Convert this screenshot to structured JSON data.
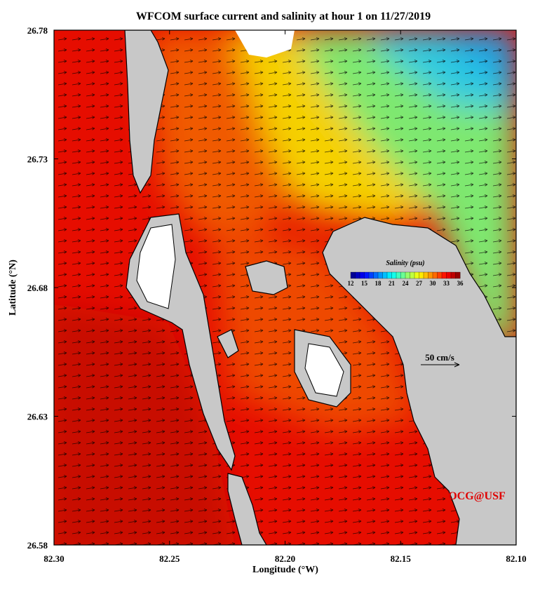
{
  "title": "WFCOM surface current and salinity at hour 1 on 11/27/2019",
  "x_axis": {
    "label": "Longitude (°W)",
    "ticks": [
      "82.30",
      "82.25",
      "82.20",
      "82.15",
      "82.10"
    ]
  },
  "y_axis": {
    "label": "Latitude (°N)",
    "ticks": [
      "26.78",
      "26.73",
      "26.68",
      "26.63",
      "26.58"
    ]
  },
  "colorbar": {
    "title": "Salinity (psu)",
    "ticks": [
      12,
      15,
      18,
      21,
      24,
      27,
      30,
      33,
      36
    ]
  },
  "scale_arrow": "50 cm/s",
  "credit": "OCG@USF"
}
